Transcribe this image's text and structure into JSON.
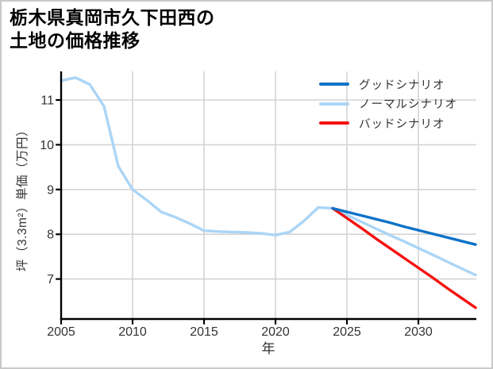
{
  "title": {
    "line1": "栃木県真岡市久下田西の",
    "line2": "土地の価格推移"
  },
  "chart_data": {
    "type": "line",
    "title": "栃木県真岡市久下田西の土地の価格推移",
    "xlabel": "年",
    "ylabel": "坪（3.3m²）単価（万円）",
    "xlim": [
      2005,
      2034
    ],
    "ylim": [
      6.05,
      11.65
    ],
    "x_ticks": [
      2005,
      2010,
      2015,
      2020,
      2025,
      2030
    ],
    "y_ticks": [
      7,
      8,
      9,
      10,
      11
    ],
    "grid": true,
    "legend_position": "upper right",
    "axis_color": "#000000",
    "grid_color": "#d4d4d4",
    "tick_label_color": "#333333",
    "series": [
      {
        "key": "good",
        "name": "グッドシナリオ",
        "color": "#0d72c8",
        "x": [
          2024,
          2025,
          2026,
          2027,
          2028,
          2029,
          2030,
          2031,
          2032,
          2033,
          2034
        ],
        "values": [
          8.58,
          8.5,
          8.42,
          8.34,
          8.26,
          8.17,
          8.09,
          8.01,
          7.93,
          7.85,
          7.77
        ]
      },
      {
        "key": "normal",
        "name": "ノーマルシナリオ",
        "color": "#abd5f6",
        "x": [
          2005,
          2006,
          2007,
          2008,
          2009,
          2010,
          2011,
          2012,
          2013,
          2014,
          2015,
          2016,
          2017,
          2018,
          2019,
          2020,
          2021,
          2022,
          2023,
          2024,
          2025,
          2026,
          2027,
          2028,
          2029,
          2030,
          2031,
          2032,
          2033,
          2034
        ],
        "values": [
          11.43,
          11.5,
          11.35,
          10.86,
          9.52,
          9.0,
          8.76,
          8.5,
          8.38,
          8.24,
          8.08,
          8.06,
          8.05,
          8.04,
          8.02,
          7.98,
          8.05,
          8.3,
          8.6,
          8.58,
          8.43,
          8.28,
          8.13,
          7.98,
          7.84,
          7.69,
          7.54,
          7.39,
          7.24,
          7.09
        ]
      },
      {
        "key": "bad",
        "name": "バッドシナリオ",
        "color": "#f51111",
        "x": [
          2024,
          2025,
          2026,
          2027,
          2028,
          2029,
          2030,
          2031,
          2032,
          2033,
          2034
        ],
        "values": [
          8.58,
          8.36,
          8.14,
          7.91,
          7.69,
          7.47,
          7.25,
          7.03,
          6.8,
          6.58,
          6.36
        ]
      }
    ]
  }
}
